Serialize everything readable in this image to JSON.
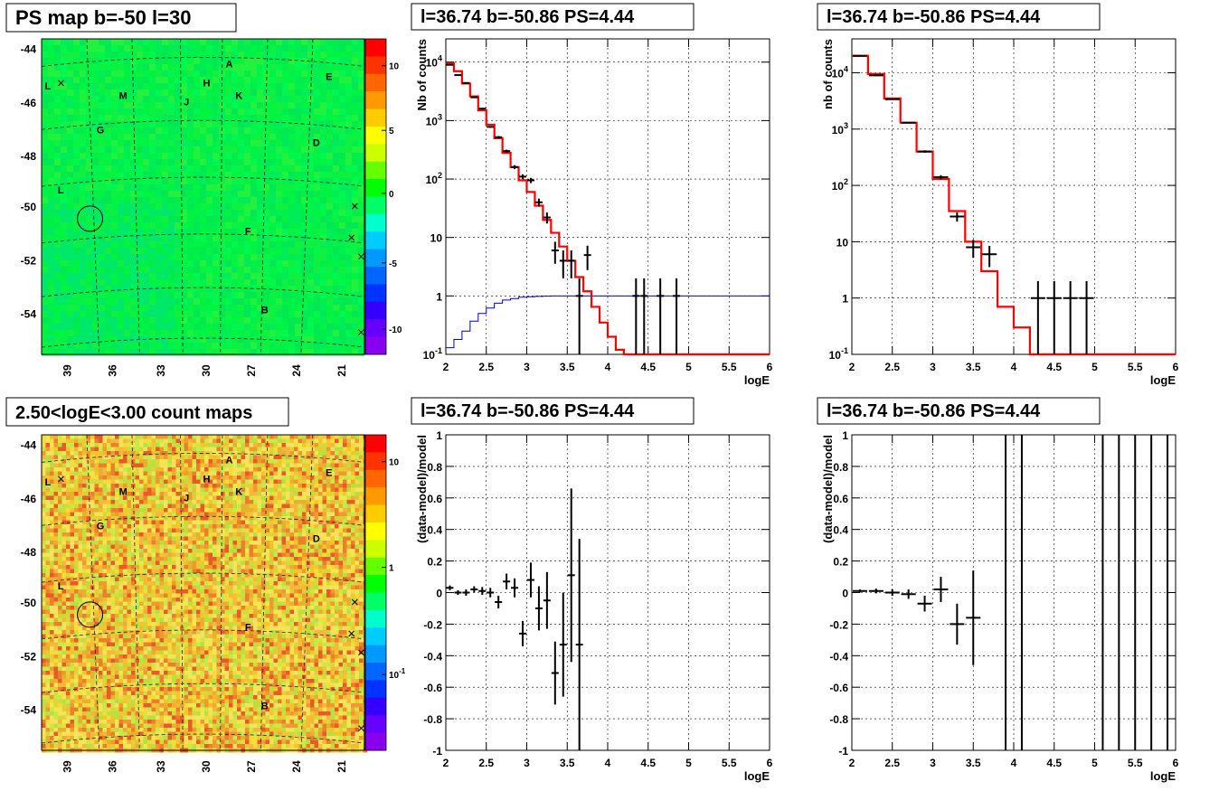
{
  "chart_data": [
    {
      "type": "heatmap",
      "title": "PS map b=-50 l=30",
      "x_ticks": [
        "39",
        "36",
        "33",
        "30",
        "27",
        "24",
        "21"
      ],
      "y_ticks": [
        "-44",
        "-46",
        "-48",
        "-50",
        "-52",
        "-54"
      ],
      "colorbar_ticks": [
        "10",
        "5",
        "0",
        "-5",
        "-10"
      ],
      "colorbar_range": [
        -12,
        12
      ],
      "labels": [
        "A",
        "E",
        "H",
        "K",
        "J",
        "M",
        "G",
        "D",
        "L",
        "L",
        "F",
        "B"
      ],
      "grid": true,
      "colors": {
        "dominant": "#00f247"
      }
    },
    {
      "type": "line",
      "title": "l=36.74 b=-50.86 PS=4.44",
      "xlabel": "logE",
      "ylabel": "Nb of counts",
      "xlim": [
        2,
        6
      ],
      "ylim": [
        0.1,
        25000
      ],
      "y_scale": "log",
      "x_ticks": [
        "2",
        "2.5",
        "3",
        "3.5",
        "4",
        "4.5",
        "5",
        "5.5",
        "6"
      ],
      "y_ticks": [
        "10^-1",
        "1",
        "10",
        "10^2",
        "10^3",
        "10^4"
      ],
      "grid": true,
      "bin_edges": [
        2.0,
        2.1,
        2.2,
        2.3,
        2.4,
        2.5,
        2.6,
        2.7,
        2.8,
        2.9,
        3.0,
        3.1,
        3.2,
        3.3,
        3.4,
        3.5,
        3.6,
        3.7,
        3.8,
        3.9,
        4.0,
        4.1,
        4.2,
        6.0
      ],
      "series": [
        {
          "color": "#ff0000",
          "style": "histogram",
          "values": [
            9500,
            7000,
            4300,
            2600,
            1500,
            850,
            500,
            280,
            160,
            95,
            60,
            35,
            20,
            12,
            7,
            4,
            2.1,
            1.2,
            0.65,
            0.35,
            0.2,
            0.12,
            0.1
          ]
        },
        {
          "color": "#0000cc",
          "style": "histogram",
          "values": [
            0.13,
            0.18,
            0.25,
            0.37,
            0.5,
            0.62,
            0.75,
            0.85,
            0.9,
            0.95,
            0.97,
            0.98,
            0.99,
            1,
            1,
            1,
            1,
            1,
            1,
            1,
            1,
            1,
            1
          ]
        },
        {
          "color": "#000000",
          "style": "errorbars",
          "points": [
            {
              "x": 2.05,
              "y": 9000
            },
            {
              "x": 2.15,
              "y": 6000
            },
            {
              "x": 2.25,
              "y": 4400
            },
            {
              "x": 2.35,
              "y": 2500
            },
            {
              "x": 2.45,
              "y": 1600
            },
            {
              "x": 2.55,
              "y": 780
            },
            {
              "x": 2.65,
              "y": 520
            },
            {
              "x": 2.75,
              "y": 300
            },
            {
              "x": 2.85,
              "y": 160
            },
            {
              "x": 2.95,
              "y": 110
            },
            {
              "x": 3.05,
              "y": 95
            },
            {
              "x": 3.15,
              "y": 40
            },
            {
              "x": 3.25,
              "y": 22
            },
            {
              "x": 3.35,
              "y": 6
            },
            {
              "x": 3.45,
              "y": 4
            },
            {
              "x": 3.55,
              "y": 4
            },
            {
              "x": 3.65,
              "y": 1
            },
            {
              "x": 3.75,
              "y": 5
            },
            {
              "x": 4.35,
              "y": 1
            },
            {
              "x": 4.45,
              "y": 1
            },
            {
              "x": 4.65,
              "y": 1
            },
            {
              "x": 4.85,
              "y": 1
            }
          ]
        }
      ]
    },
    {
      "type": "line",
      "title": "l=36.74 b=-50.86 PS=4.44",
      "xlabel": "logE",
      "ylabel": "nb of counts",
      "xlim": [
        2,
        6
      ],
      "ylim": [
        0.1,
        40000
      ],
      "y_scale": "log",
      "x_ticks": [
        "2",
        "2.5",
        "3",
        "3.5",
        "4",
        "4.5",
        "5",
        "5.5",
        "6"
      ],
      "y_ticks": [
        "10^-1",
        "1",
        "10",
        "10^2",
        "10^3",
        "10^4"
      ],
      "grid": true,
      "bin_edges": [
        2.0,
        2.2,
        2.4,
        2.6,
        2.8,
        3.0,
        3.2,
        3.4,
        3.6,
        3.8,
        4.0,
        4.2,
        6.0
      ],
      "series": [
        {
          "color": "#ff0000",
          "style": "histogram",
          "values": [
            20000,
            9500,
            3500,
            1300,
            400,
            130,
            35,
            10,
            3,
            0.7,
            0.3,
            0.1
          ]
        },
        {
          "color": "#000000",
          "style": "errorbars",
          "points": [
            {
              "x": 2.1,
              "y": 20000
            },
            {
              "x": 2.3,
              "y": 9000
            },
            {
              "x": 2.5,
              "y": 3400
            },
            {
              "x": 2.7,
              "y": 1300
            },
            {
              "x": 2.9,
              "y": 400
            },
            {
              "x": 3.1,
              "y": 140
            },
            {
              "x": 3.3,
              "y": 28
            },
            {
              "x": 3.5,
              "y": 8
            },
            {
              "x": 3.7,
              "y": 6
            },
            {
              "x": 4.3,
              "y": 1
            },
            {
              "x": 4.5,
              "y": 1
            },
            {
              "x": 4.7,
              "y": 1
            },
            {
              "x": 4.9,
              "y": 1
            }
          ]
        }
      ]
    },
    {
      "type": "heatmap",
      "title": "2.50<logE<3.00 count maps",
      "x_ticks": [
        "39",
        "36",
        "33",
        "30",
        "27",
        "24",
        "21"
      ],
      "y_ticks": [
        "-44",
        "-46",
        "-48",
        "-50",
        "-52",
        "-54"
      ],
      "colorbar_ticks": [
        "10",
        "1",
        "10^-1"
      ],
      "labels": [
        "A",
        "E",
        "H",
        "K",
        "J",
        "M",
        "G",
        "D",
        "L",
        "L",
        "F",
        "B"
      ],
      "grid": true,
      "colors": {
        "dominant": "#f0c82e"
      }
    },
    {
      "type": "scatter",
      "title": "l=36.74 b=-50.86 PS=4.44",
      "xlabel": "logE",
      "ylabel": "(data-model)/model",
      "xlim": [
        2,
        6
      ],
      "ylim": [
        -1,
        1
      ],
      "x_ticks": [
        "2",
        "2.5",
        "3",
        "3.5",
        "4",
        "4.5",
        "5",
        "5.5",
        "6"
      ],
      "y_ticks": [
        "-1",
        "-0.8",
        "-0.6",
        "-0.4",
        "-0.2",
        "0",
        "0.2",
        "0.4",
        "0.6",
        "0.8",
        "1"
      ],
      "grid": true,
      "points": [
        {
          "x": 2.05,
          "y": 0.03,
          "err": 0.015
        },
        {
          "x": 2.15,
          "y": 0.0,
          "err": 0.015
        },
        {
          "x": 2.25,
          "y": 0.0,
          "err": 0.02
        },
        {
          "x": 2.35,
          "y": 0.02,
          "err": 0.02
        },
        {
          "x": 2.45,
          "y": 0.01,
          "err": 0.025
        },
        {
          "x": 2.55,
          "y": 0.0,
          "err": 0.03
        },
        {
          "x": 2.65,
          "y": -0.06,
          "err": 0.04
        },
        {
          "x": 2.75,
          "y": 0.07,
          "err": 0.05
        },
        {
          "x": 2.85,
          "y": 0.03,
          "err": 0.06
        },
        {
          "x": 2.95,
          "y": -0.26,
          "err": 0.08
        },
        {
          "x": 3.05,
          "y": 0.08,
          "err": 0.11
        },
        {
          "x": 3.15,
          "y": -0.1,
          "err": 0.14
        },
        {
          "x": 3.25,
          "y": -0.05,
          "err": 0.18
        },
        {
          "x": 3.35,
          "y": -0.51,
          "err": 0.2
        },
        {
          "x": 3.45,
          "y": -0.33,
          "err": 0.33
        },
        {
          "x": 3.55,
          "y": 0.11,
          "err": 0.55
        },
        {
          "x": 3.65,
          "y": -0.33,
          "err": 0.67
        }
      ]
    },
    {
      "type": "scatter",
      "title": "l=36.74 b=-50.86 PS=4.44",
      "xlabel": "logE",
      "ylabel": "(data-model)/model",
      "xlim": [
        2,
        6
      ],
      "ylim": [
        -1,
        1
      ],
      "x_ticks": [
        "2",
        "2.5",
        "3",
        "3.5",
        "4",
        "4.5",
        "5",
        "5.5",
        "6"
      ],
      "y_ticks": [
        "-1",
        "-0.8",
        "-0.6",
        "-0.4",
        "-0.2",
        "0",
        "0.2",
        "0.4",
        "0.6",
        "0.8",
        "1"
      ],
      "grid": true,
      "points": [
        {
          "x": 2.1,
          "y": 0.01,
          "err": 0.01
        },
        {
          "x": 2.3,
          "y": 0.01,
          "err": 0.015
        },
        {
          "x": 2.5,
          "y": 0.0,
          "err": 0.02
        },
        {
          "x": 2.7,
          "y": -0.01,
          "err": 0.03
        },
        {
          "x": 2.9,
          "y": -0.07,
          "err": 0.05
        },
        {
          "x": 3.1,
          "y": 0.02,
          "err": 0.08
        },
        {
          "x": 3.3,
          "y": -0.2,
          "err": 0.13
        },
        {
          "x": 3.5,
          "y": -0.16,
          "err": 0.3
        }
      ],
      "vertical_bars": [
        3.9,
        4.1,
        5.1,
        5.3,
        5.5,
        5.7,
        5.9
      ]
    }
  ]
}
